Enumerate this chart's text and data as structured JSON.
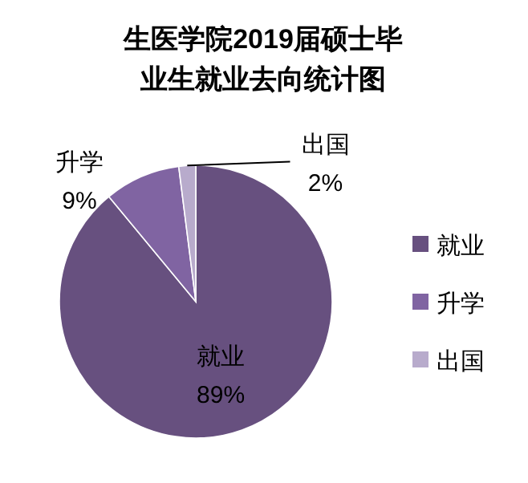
{
  "chart_data": {
    "type": "pie",
    "title": "生医学院2019届硕士毕业生就业去向统计图",
    "categories": [
      "就业",
      "升学",
      "出国"
    ],
    "values": [
      89,
      9,
      2
    ],
    "value_labels": [
      "89%",
      "9%",
      "2%"
    ],
    "colors": [
      "#67507f",
      "#8064a2",
      "#b8abcc"
    ],
    "legend": "right"
  }
}
